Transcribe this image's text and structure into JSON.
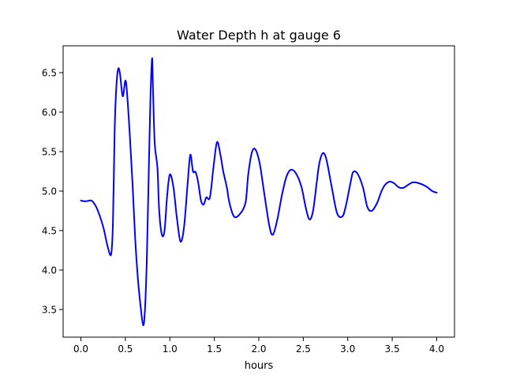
{
  "chart_data": {
    "type": "line",
    "title": "Water Depth h at gauge 6",
    "xlabel": "hours",
    "ylabel": "",
    "xlim": [
      -0.2,
      4.2
    ],
    "ylim": [
      3.15,
      6.84
    ],
    "xticks": [
      0.0,
      0.5,
      1.0,
      1.5,
      2.0,
      2.5,
      3.0,
      3.5,
      4.0
    ],
    "xtick_labels": [
      "0.0",
      "0.5",
      "1.0",
      "1.5",
      "2.0",
      "2.5",
      "3.0",
      "3.5",
      "4.0"
    ],
    "yticks": [
      3.5,
      4.0,
      4.5,
      5.0,
      5.5,
      6.0,
      6.5
    ],
    "ytick_labels": [
      "3.5",
      "4.0",
      "4.5",
      "5.0",
      "5.5",
      "6.0",
      "6.5"
    ],
    "grid": false,
    "line_color": "#0000ff",
    "series": [
      {
        "x": [
          0.0,
          0.05,
          0.1,
          0.13,
          0.18,
          0.25,
          0.3,
          0.34,
          0.36,
          0.38,
          0.4,
          0.42,
          0.44,
          0.47,
          0.5,
          0.52,
          0.55,
          0.58,
          0.61,
          0.64,
          0.67,
          0.7,
          0.72,
          0.74,
          0.76,
          0.78,
          0.8,
          0.81,
          0.83,
          0.86,
          0.88,
          0.91,
          0.94,
          0.97,
          1.0,
          1.04,
          1.08,
          1.12,
          1.16,
          1.2,
          1.23,
          1.26,
          1.29,
          1.32,
          1.35,
          1.38,
          1.41,
          1.45,
          1.49,
          1.53,
          1.57,
          1.6,
          1.64,
          1.67,
          1.72,
          1.78,
          1.85,
          1.88,
          1.92,
          1.96,
          2.01,
          2.06,
          2.12,
          2.16,
          2.21,
          2.26,
          2.31,
          2.36,
          2.42,
          2.48,
          2.53,
          2.57,
          2.61,
          2.65,
          2.68,
          2.72,
          2.76,
          2.82,
          2.88,
          2.94,
          2.98,
          3.03,
          3.06,
          3.11,
          3.17,
          3.22,
          3.27,
          3.33,
          3.38,
          3.42,
          3.47,
          3.52,
          3.57,
          3.62,
          3.68,
          3.73,
          3.8,
          3.88,
          3.95,
          4.0
        ],
        "values": [
          4.88,
          4.87,
          4.88,
          4.87,
          4.78,
          4.55,
          4.3,
          4.2,
          4.6,
          5.8,
          6.35,
          6.55,
          6.48,
          6.2,
          6.4,
          6.22,
          5.7,
          5.1,
          4.4,
          3.9,
          3.55,
          3.3,
          3.5,
          4.1,
          5.1,
          6.1,
          6.68,
          6.3,
          5.6,
          5.3,
          4.75,
          4.45,
          4.5,
          4.95,
          5.21,
          5.05,
          4.65,
          4.36,
          4.55,
          5.1,
          5.46,
          5.25,
          5.24,
          5.1,
          4.88,
          4.83,
          4.92,
          4.92,
          5.3,
          5.62,
          5.45,
          5.25,
          5.05,
          4.85,
          4.68,
          4.7,
          4.85,
          5.2,
          5.48,
          5.53,
          5.35,
          4.98,
          4.55,
          4.45,
          4.65,
          4.95,
          5.18,
          5.27,
          5.22,
          5.05,
          4.78,
          4.64,
          4.75,
          5.1,
          5.35,
          5.48,
          5.4,
          5.05,
          4.72,
          4.68,
          4.82,
          5.1,
          5.24,
          5.22,
          5.05,
          4.8,
          4.75,
          4.85,
          5.0,
          5.08,
          5.12,
          5.1,
          5.05,
          5.04,
          5.08,
          5.11,
          5.1,
          5.06,
          5.0,
          4.98
        ]
      }
    ]
  }
}
